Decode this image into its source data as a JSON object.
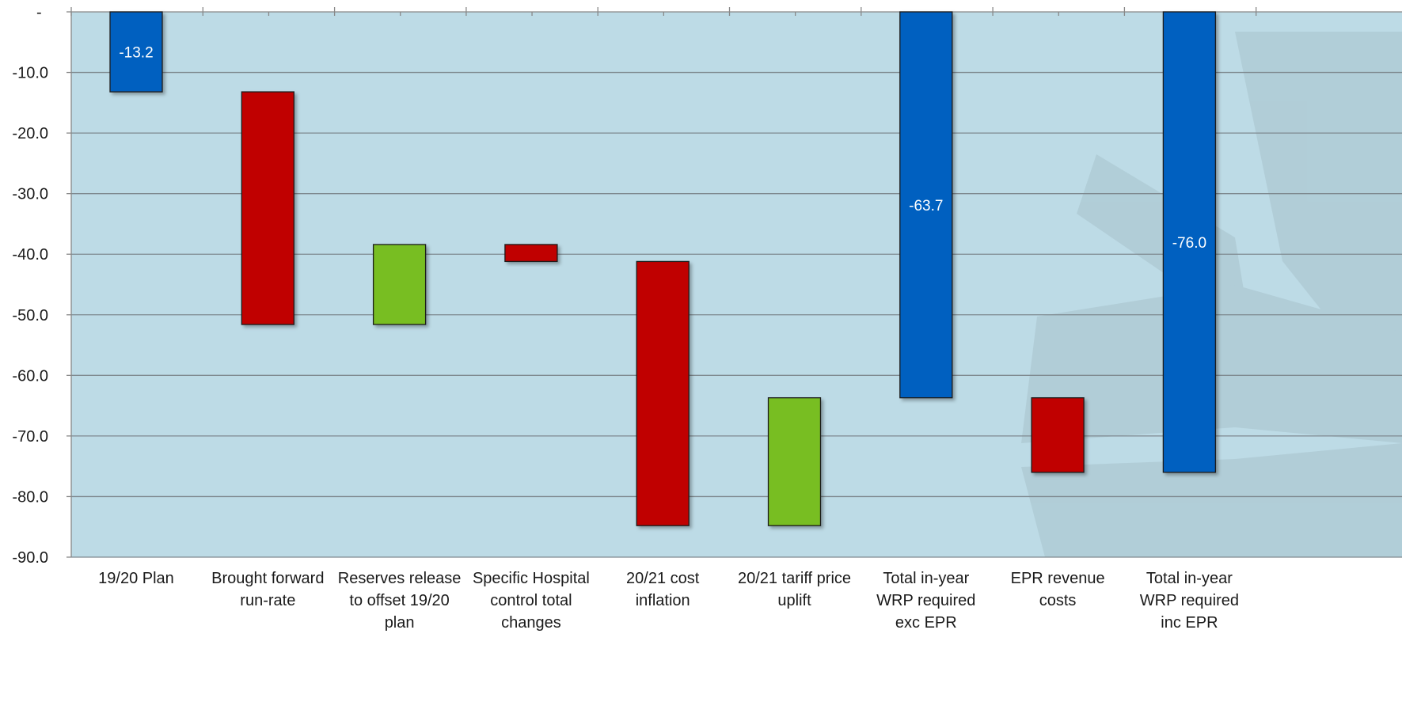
{
  "chart_data": {
    "type": "bar",
    "subtype": "waterfall",
    "title": "",
    "xlabel": "",
    "ylabel": "",
    "ylim": [
      -90,
      0
    ],
    "y_ticks": [
      0,
      -10,
      -20,
      -30,
      -40,
      -50,
      -60,
      -70,
      -80,
      -90
    ],
    "y_tick_labels": [
      "-",
      "-10.0",
      "-20.0",
      "-30.0",
      "-40.0",
      "-50.0",
      "-60.0",
      "-70.0",
      "-80.0",
      "-90.0"
    ],
    "grid": true,
    "legend": "none",
    "categories": [
      [
        "19/20 Plan"
      ],
      [
        "Brought forward",
        "run-rate"
      ],
      [
        "Reserves release",
        "to offset 19/20",
        "plan"
      ],
      [
        "Specific Hospital",
        "control total",
        "changes"
      ],
      [
        "20/21 cost",
        "inflation"
      ],
      [
        "20/21 tariff price",
        "uplift"
      ],
      [
        "Total in-year",
        "WRP required",
        "exc EPR"
      ],
      [
        "EPR revenue",
        "costs"
      ],
      [
        "Total in-year",
        "WRP required",
        "inc EPR"
      ]
    ],
    "bars": [
      {
        "start": 0,
        "end": -13.2,
        "kind": "total",
        "label": "-13.2"
      },
      {
        "start": -13.2,
        "end": -51.6,
        "kind": "decrease",
        "label": ""
      },
      {
        "start": -51.6,
        "end": -38.4,
        "kind": "increase",
        "label": ""
      },
      {
        "start": -38.4,
        "end": -41.2,
        "kind": "decrease",
        "label": ""
      },
      {
        "start": -41.2,
        "end": -84.8,
        "kind": "decrease",
        "label": ""
      },
      {
        "start": -84.8,
        "end": -63.7,
        "kind": "increase",
        "label": ""
      },
      {
        "start": 0,
        "end": -63.7,
        "kind": "total",
        "label": "-63.7"
      },
      {
        "start": -63.7,
        "end": -76.0,
        "kind": "decrease",
        "label": ""
      },
      {
        "start": 0,
        "end": -76.0,
        "kind": "total",
        "label": "-76.0"
      }
    ],
    "colors": {
      "total": "#0461c0",
      "decrease": "#c00000",
      "increase": "#78be21",
      "plot_background": "#bddbe6",
      "watermark": "#a8c2cc",
      "gridline": "#7f8a90"
    }
  }
}
